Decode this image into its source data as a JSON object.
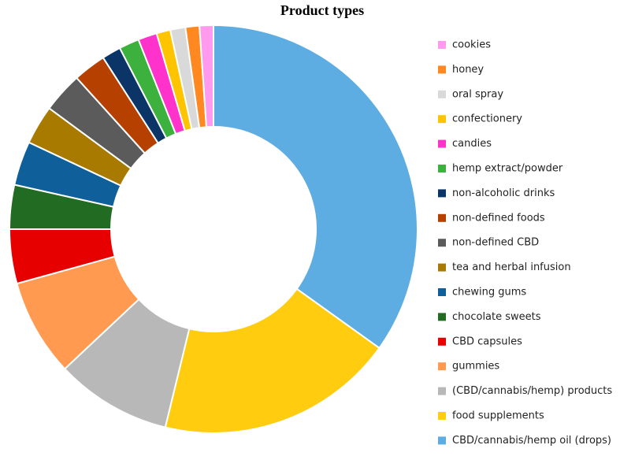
{
  "chart_data": {
    "type": "donut",
    "title": "Product types",
    "categories": [
      "CBD/cannabis/hemp oil (drops)",
      "food supplements",
      "(CBD/cannabis/hemp) products",
      "gummies",
      "CBD capsules",
      "chocolate sweets",
      "chewing gums",
      "tea and herbal infusion",
      "non-defined CBD",
      "non-defined foods",
      "non-alcoholic drinks",
      "hemp extract/powder",
      "candies",
      "confectionery",
      "oral spray",
      "honey",
      "cookies"
    ],
    "values": [
      34.9,
      18.9,
      9.2,
      7.7,
      4.3,
      3.5,
      3.5,
      3.1,
      3.2,
      2.6,
      1.5,
      1.6,
      1.5,
      1.1,
      1.2,
      1.1,
      1.1
    ],
    "colors": [
      "#5dade2",
      "#ffcc0f",
      "#b8b8b8",
      "#ff9a50",
      "#e60000",
      "#226b22",
      "#0f5f9a",
      "#a87a00",
      "#5b5b5b",
      "#b54000",
      "#0a3566",
      "#3db13d",
      "#ff33cc",
      "#ffc400",
      "#d9d9d9",
      "#ff8820",
      "#ff9aee"
    ]
  }
}
